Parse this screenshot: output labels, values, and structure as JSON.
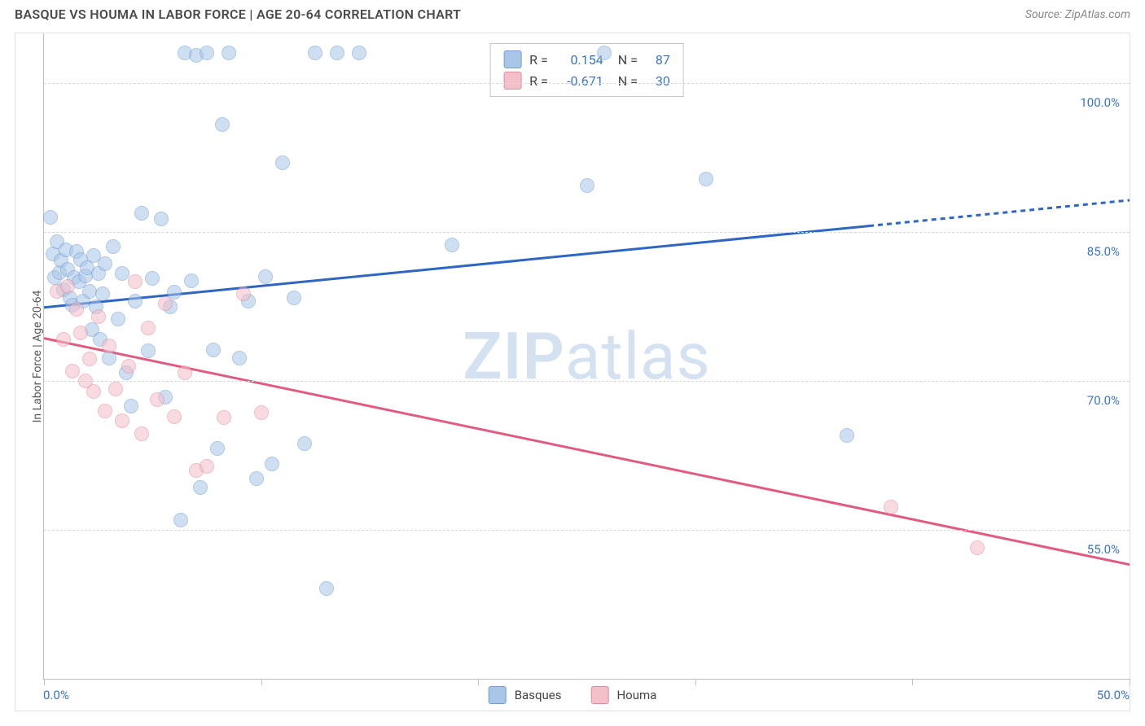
{
  "title": "BASQUE VS HOUMA IN LABOR FORCE | AGE 20-64 CORRELATION CHART",
  "source": "Source: ZipAtlas.com",
  "watermark_a": "ZIP",
  "watermark_b": "atlas",
  "chart": {
    "type": "scatter-correlation",
    "y_axis_label": "In Labor Force | Age 20-64",
    "x_range": [
      0,
      50
    ],
    "y_range": [
      40,
      105
    ],
    "x_ticks": [
      0,
      10,
      20,
      30,
      40,
      50
    ],
    "x_tick_labels": {
      "0": "0.0%",
      "50": "50.0%"
    },
    "y_gridlines": [
      55,
      70,
      85,
      100
    ],
    "y_tick_labels": {
      "55": "55.0%",
      "70": "70.0%",
      "85": "85.0%",
      "100": "100.0%"
    },
    "grid_color": "#d8d8d8",
    "axis_color": "#bfbfbf",
    "label_color_primary": "#3a74c4",
    "label_fontsize": 15,
    "point_radius": 9,
    "point_opacity": 0.55,
    "series": [
      {
        "name": "Basques",
        "fill": "#a9c6e8",
        "stroke": "#6f9cd3",
        "line_color": "#2e66c4",
        "line_width": 3,
        "R": "0.154",
        "N": "87",
        "trend": {
          "x1": 0,
          "y1": 77.4,
          "x2": 50,
          "y2": 88.2,
          "solid_until_x": 38
        },
        "points": [
          [
            0.3,
            86.5
          ],
          [
            0.4,
            82.8
          ],
          [
            0.5,
            80.4
          ],
          [
            0.6,
            84.0
          ],
          [
            0.7,
            80.9
          ],
          [
            0.8,
            82.1
          ],
          [
            0.9,
            79.2
          ],
          [
            1.0,
            83.2
          ],
          [
            1.1,
            81.2
          ],
          [
            1.2,
            78.4
          ],
          [
            1.3,
            77.6
          ],
          [
            1.4,
            80.4
          ],
          [
            1.5,
            83.0
          ],
          [
            1.6,
            80.0
          ],
          [
            1.7,
            82.2
          ],
          [
            1.8,
            78.0
          ],
          [
            1.9,
            80.6
          ],
          [
            2.0,
            81.4
          ],
          [
            2.1,
            79.0
          ],
          [
            2.2,
            75.2
          ],
          [
            2.3,
            82.6
          ],
          [
            2.4,
            77.5
          ],
          [
            2.5,
            80.8
          ],
          [
            2.6,
            74.2
          ],
          [
            2.7,
            78.8
          ],
          [
            2.8,
            81.8
          ],
          [
            3.0,
            72.3
          ],
          [
            3.2,
            83.5
          ],
          [
            3.4,
            76.2
          ],
          [
            3.6,
            80.8
          ],
          [
            3.8,
            70.8
          ],
          [
            4.0,
            67.5
          ],
          [
            4.2,
            78.0
          ],
          [
            4.5,
            86.9
          ],
          [
            4.8,
            73.0
          ],
          [
            5.0,
            80.3
          ],
          [
            5.4,
            86.3
          ],
          [
            5.6,
            68.4
          ],
          [
            5.8,
            77.5
          ],
          [
            6.0,
            78.9
          ],
          [
            6.3,
            56.0
          ],
          [
            6.5,
            103.0
          ],
          [
            6.8,
            80.1
          ],
          [
            7.0,
            102.8
          ],
          [
            7.2,
            59.3
          ],
          [
            7.5,
            103.0
          ],
          [
            7.8,
            73.1
          ],
          [
            8.0,
            63.2
          ],
          [
            8.2,
            95.8
          ],
          [
            8.5,
            103.0
          ],
          [
            9.0,
            72.3
          ],
          [
            9.4,
            78.0
          ],
          [
            9.8,
            60.2
          ],
          [
            10.2,
            80.5
          ],
          [
            10.5,
            61.6
          ],
          [
            11.0,
            92.0
          ],
          [
            11.5,
            78.4
          ],
          [
            12.0,
            63.7
          ],
          [
            12.5,
            103.0
          ],
          [
            13.0,
            49.1
          ],
          [
            13.5,
            103.0
          ],
          [
            14.5,
            103.0
          ],
          [
            18.8,
            83.7
          ],
          [
            25.0,
            89.7
          ],
          [
            25.8,
            103.0
          ],
          [
            30.5,
            90.3
          ],
          [
            37.0,
            64.5
          ]
        ]
      },
      {
        "name": "Houma",
        "fill": "#f3bfc9",
        "stroke": "#e08a9e",
        "line_color": "#e35a80",
        "line_width": 3,
        "R": "-0.671",
        "N": "30",
        "trend": {
          "x1": 0,
          "y1": 74.3,
          "x2": 50,
          "y2": 51.5,
          "solid_until_x": 50
        },
        "points": [
          [
            0.6,
            79.0
          ],
          [
            0.9,
            74.2
          ],
          [
            1.1,
            79.5
          ],
          [
            1.3,
            71.0
          ],
          [
            1.5,
            77.2
          ],
          [
            1.7,
            74.8
          ],
          [
            1.9,
            70.0
          ],
          [
            2.1,
            72.2
          ],
          [
            2.3,
            68.9
          ],
          [
            2.5,
            76.5
          ],
          [
            2.8,
            67.0
          ],
          [
            3.0,
            73.5
          ],
          [
            3.3,
            69.2
          ],
          [
            3.6,
            66.0
          ],
          [
            3.9,
            71.5
          ],
          [
            4.2,
            80.0
          ],
          [
            4.5,
            64.7
          ],
          [
            4.8,
            75.3
          ],
          [
            5.2,
            68.1
          ],
          [
            5.6,
            77.8
          ],
          [
            6.0,
            66.4
          ],
          [
            6.5,
            70.8
          ],
          [
            7.0,
            61.0
          ],
          [
            7.5,
            61.4
          ],
          [
            8.3,
            66.3
          ],
          [
            9.2,
            78.8
          ],
          [
            10.0,
            66.8
          ],
          [
            39.0,
            57.3
          ],
          [
            43.0,
            53.2
          ]
        ]
      }
    ],
    "legend_top_label_r": "R =",
    "legend_top_label_n": "N =",
    "legend_bottom": [
      {
        "label": "Basques",
        "fill": "#a9c6e8",
        "stroke": "#6f9cd3"
      },
      {
        "label": "Houma",
        "fill": "#f3bfc9",
        "stroke": "#e08a9e"
      }
    ]
  }
}
